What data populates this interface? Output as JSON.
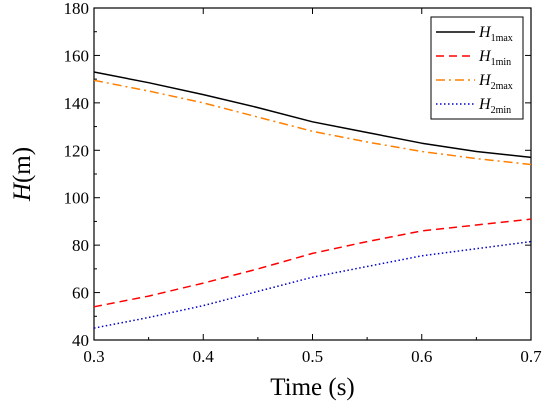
{
  "chart_data": {
    "type": "line",
    "title": "",
    "xlabel": "Time (s)",
    "ylabel_main": "H",
    "ylabel_unit": "(m)",
    "xlim": [
      0.3,
      0.7
    ],
    "ylim": [
      40,
      180
    ],
    "x_ticks": [
      "0.3",
      "0.4",
      "0.5",
      "0.6",
      "0.7"
    ],
    "y_ticks": [
      "40",
      "60",
      "80",
      "100",
      "120",
      "140",
      "160",
      "180"
    ],
    "grid": false,
    "legend_position": "top-right",
    "x": [
      0.3,
      0.35,
      0.4,
      0.45,
      0.5,
      0.55,
      0.6,
      0.65,
      0.7
    ],
    "series": [
      {
        "name": "H",
        "subscript": "1max",
        "color": "#000000",
        "dash": "solid",
        "values": [
          153,
          148.5,
          143.5,
          138,
          132,
          127.5,
          123,
          119.5,
          117
        ]
      },
      {
        "name": "H",
        "subscript": "1min",
        "color": "#ff0000",
        "dash": "dashed",
        "values": [
          54,
          58.5,
          64,
          70,
          76.5,
          81.5,
          86,
          88.5,
          91
        ]
      },
      {
        "name": "H",
        "subscript": "2max",
        "color": "#ff8000",
        "dash": "dashdot",
        "values": [
          149.5,
          145,
          140,
          134,
          128,
          123.5,
          119.5,
          116.5,
          114
        ]
      },
      {
        "name": "H",
        "subscript": "2min",
        "color": "#0000cc",
        "dash": "dotted",
        "values": [
          45,
          49.5,
          54.5,
          60.5,
          66.5,
          71,
          75.5,
          78.5,
          81.5
        ]
      }
    ]
  }
}
